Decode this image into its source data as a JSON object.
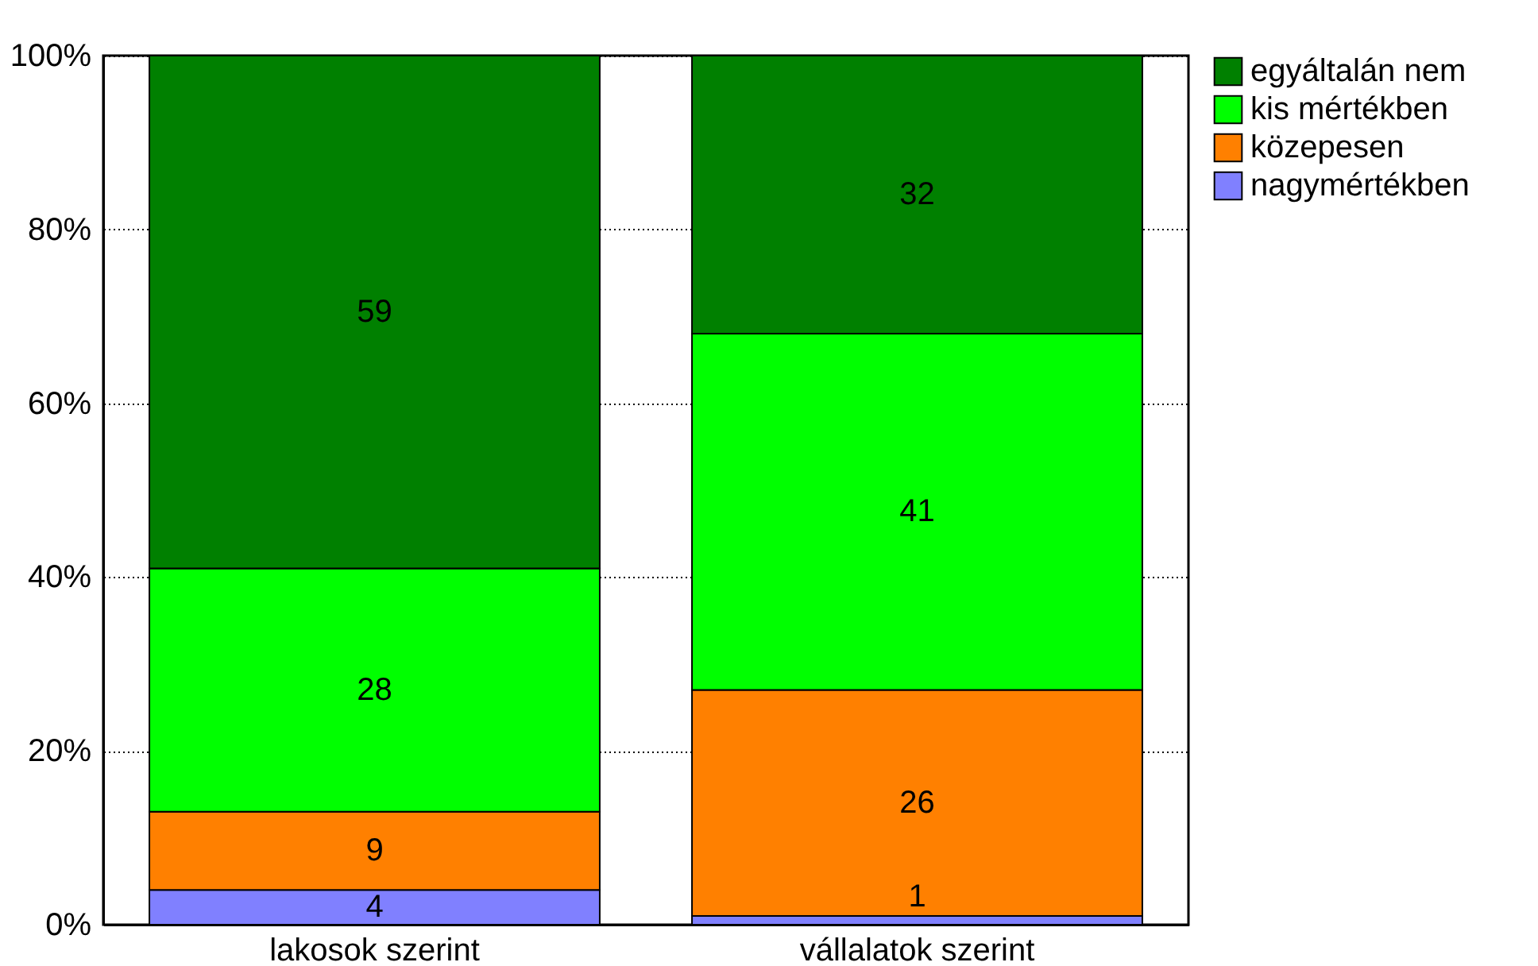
{
  "chart_data": {
    "type": "bar",
    "stacked": true,
    "categories": [
      "lakosok szerint",
      "vállalatok szerint"
    ],
    "series": [
      {
        "name": "nagymértékben",
        "color": "#8080ff",
        "values": [
          4,
          1
        ]
      },
      {
        "name": "közepesen",
        "color": "#ff8000",
        "values": [
          9,
          26
        ]
      },
      {
        "name": "kis mértékben",
        "color": "#00ff00",
        "values": [
          28,
          41
        ]
      },
      {
        "name": "egyáltalán nem",
        "color": "#008000",
        "values": [
          59,
          32
        ]
      }
    ],
    "ylim": [
      0,
      100
    ],
    "yticks": [
      {
        "value": 0,
        "label": "0%"
      },
      {
        "value": 20,
        "label": "20%"
      },
      {
        "value": 40,
        "label": "40%"
      },
      {
        "value": 60,
        "label": "60%"
      },
      {
        "value": 80,
        "label": "80%"
      },
      {
        "value": 100,
        "label": "100%"
      }
    ],
    "grid": "y",
    "legend": "right",
    "data_labels": true
  }
}
